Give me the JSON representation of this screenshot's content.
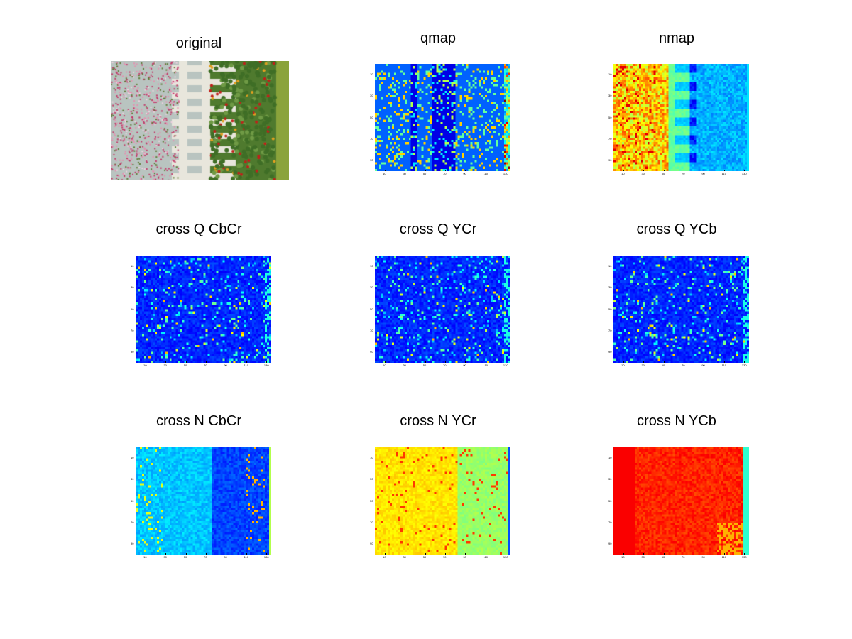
{
  "figure": {
    "panels": [
      {
        "id": "original",
        "title": "original"
      },
      {
        "id": "qmap",
        "title": "qmap"
      },
      {
        "id": "nmap",
        "title": "nmap"
      },
      {
        "id": "cross-q-cbcr",
        "title": "cross Q CbCr"
      },
      {
        "id": "cross-q-ycr",
        "title": "cross Q YCr"
      },
      {
        "id": "cross-q-ycb",
        "title": "cross Q YCb"
      },
      {
        "id": "cross-n-cbcr",
        "title": "cross N CbCr"
      },
      {
        "id": "cross-n-ycr",
        "title": "cross N YCr"
      },
      {
        "id": "cross-n-ycb",
        "title": "cross N YCb"
      }
    ]
  },
  "chart_data": [
    {
      "type": "image",
      "title": "original",
      "content": "photo of flowers beside a white picket fence"
    },
    {
      "type": "heatmap",
      "title": "qmap",
      "colormap": "jet",
      "xticks": [
        "10",
        "20",
        "30",
        "40",
        "50",
        "60",
        "70",
        "80",
        "90",
        "100",
        "110",
        "120",
        "130"
      ],
      "yticks": [
        "10",
        "20",
        "30",
        "40",
        "50",
        "60",
        "70",
        "80",
        "90"
      ]
    },
    {
      "type": "heatmap",
      "title": "nmap",
      "colormap": "jet",
      "xticks": [
        "10",
        "20",
        "30",
        "40",
        "50",
        "60",
        "70",
        "80",
        "90",
        "100",
        "110",
        "120",
        "130"
      ],
      "yticks": [
        "10",
        "20",
        "30",
        "40",
        "50",
        "60",
        "70",
        "80",
        "90"
      ]
    },
    {
      "type": "heatmap",
      "title": "cross Q CbCr",
      "colormap": "jet",
      "xticks": [
        "10",
        "20",
        "30",
        "40",
        "50",
        "60",
        "70",
        "80",
        "90",
        "100",
        "110",
        "120",
        "130"
      ],
      "yticks": [
        "10",
        "20",
        "30",
        "40",
        "50",
        "60",
        "70",
        "80",
        "90"
      ]
    },
    {
      "type": "heatmap",
      "title": "cross Q YCr",
      "colormap": "jet",
      "xticks": [
        "10",
        "20",
        "30",
        "40",
        "50",
        "60",
        "70",
        "80",
        "90",
        "100",
        "110",
        "120",
        "130"
      ],
      "yticks": [
        "10",
        "20",
        "30",
        "40",
        "50",
        "60",
        "70",
        "80",
        "90"
      ]
    },
    {
      "type": "heatmap",
      "title": "cross Q YCb",
      "colormap": "jet",
      "xticks": [
        "10",
        "20",
        "30",
        "40",
        "50",
        "60",
        "70",
        "80",
        "90",
        "100",
        "110",
        "120",
        "130"
      ],
      "yticks": [
        "10",
        "20",
        "30",
        "40",
        "50",
        "60",
        "70",
        "80",
        "90"
      ]
    },
    {
      "type": "heatmap",
      "title": "cross N CbCr",
      "colormap": "jet",
      "xticks": [
        "10",
        "20",
        "30",
        "40",
        "50",
        "60",
        "70",
        "80",
        "90",
        "100",
        "110",
        "120",
        "130"
      ],
      "yticks": [
        "10",
        "20",
        "30",
        "40",
        "50",
        "60",
        "70",
        "80",
        "90"
      ]
    },
    {
      "type": "heatmap",
      "title": "cross N YCr",
      "colormap": "jet",
      "xticks": [
        "10",
        "20",
        "30",
        "40",
        "50",
        "60",
        "70",
        "80",
        "90",
        "100",
        "110",
        "120",
        "130"
      ],
      "yticks": [
        "10",
        "20",
        "30",
        "40",
        "50",
        "60",
        "70",
        "80",
        "90"
      ]
    },
    {
      "type": "heatmap",
      "title": "cross N YCb",
      "colormap": "jet",
      "xticks": [
        "10",
        "20",
        "30",
        "40",
        "50",
        "60",
        "70",
        "80",
        "90",
        "100",
        "110",
        "120",
        "130"
      ],
      "yticks": [
        "10",
        "20",
        "30",
        "40",
        "50",
        "60",
        "70",
        "80",
        "90"
      ]
    }
  ]
}
